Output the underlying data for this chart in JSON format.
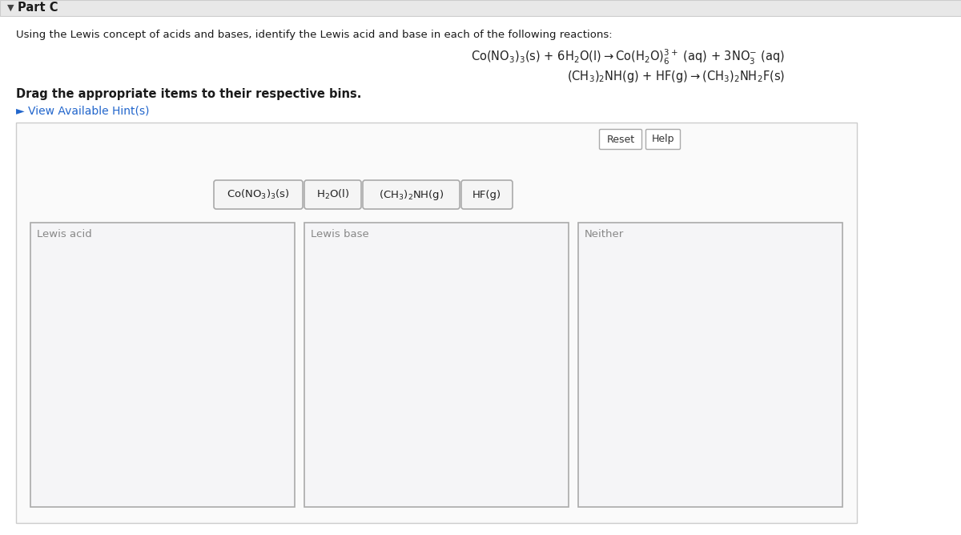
{
  "bg_color": "#ffffff",
  "top_bar_color": "#e8e8e8",
  "top_bar_border": "#cccccc",
  "title_text": "Part C",
  "intro_text": "Using the Lewis concept of acids and bases, identify the Lewis acid and base in each of the following reactions:",
  "drag_text": "Drag the appropriate items to their respective bins.",
  "hint_text": "► View Available Hint(s)",
  "reset_text": "Reset",
  "help_text": "Help",
  "chip_labels": [
    "Co(NO$_3$)$_3$(s)",
    "H$_2$O(l)",
    "(CH$_3$)$_2$NH(g)",
    "HF(g)"
  ],
  "bin_labels": [
    "Lewis acid",
    "Lewis base",
    "Neither"
  ],
  "chip_color": "#f5f5f5",
  "chip_border": "#aaaaaa",
  "bin_bg": "#f5f5f7",
  "bin_border": "#aaaaaa",
  "outer_bg": "#fafafa",
  "outer_border": "#cccccc",
  "text_dark": "#1a1a1a",
  "text_hint": "#2266cc",
  "text_gray": "#888888",
  "text_btn": "#333333",
  "reaction_color": "#222222"
}
